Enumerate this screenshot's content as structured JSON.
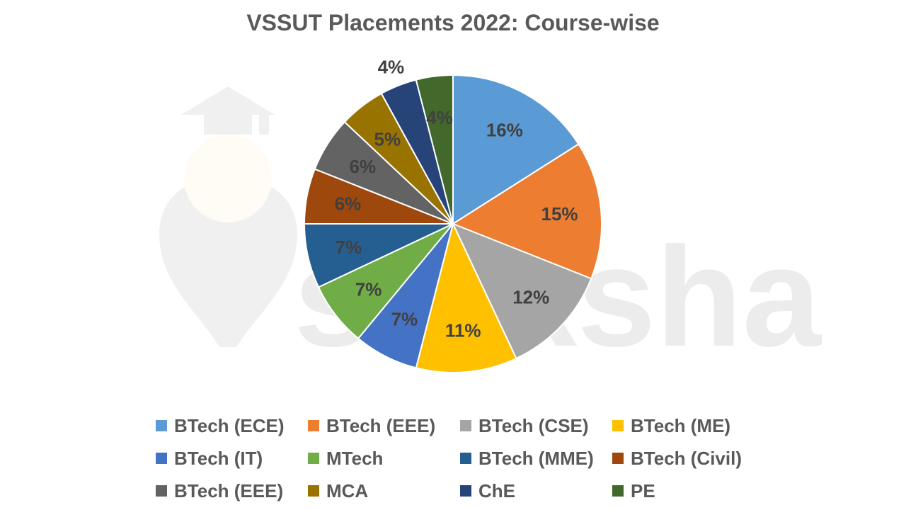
{
  "chart_data": {
    "type": "pie",
    "title": "VSSUT Placements 2022: Course-wise",
    "categories": [
      "BTech (ECE)",
      "BTech (EEE)",
      "BTech (CSE)",
      "BTech (ME)",
      "BTech (IT)",
      "MTech",
      "BTech (MME)",
      "BTech (Civil)",
      "BTech (EEE)",
      "MCA",
      "ChE",
      "PE"
    ],
    "values": [
      16,
      15,
      12,
      11,
      7,
      7,
      7,
      6,
      6,
      5,
      4,
      4
    ],
    "labels": [
      "16%",
      "15%",
      "12%",
      "11%",
      "7%",
      "7%",
      "7%",
      "6%",
      "6%",
      "5%",
      "4%",
      "4%"
    ],
    "colors": [
      "#5B9BD5",
      "#ED7D31",
      "#A5A5A5",
      "#FFC000",
      "#4472C4",
      "#70AD47",
      "#255E91",
      "#9E480E",
      "#636363",
      "#997300",
      "#264478",
      "#43682B"
    ],
    "legend_position": "bottom",
    "watermark": "shiksha"
  }
}
